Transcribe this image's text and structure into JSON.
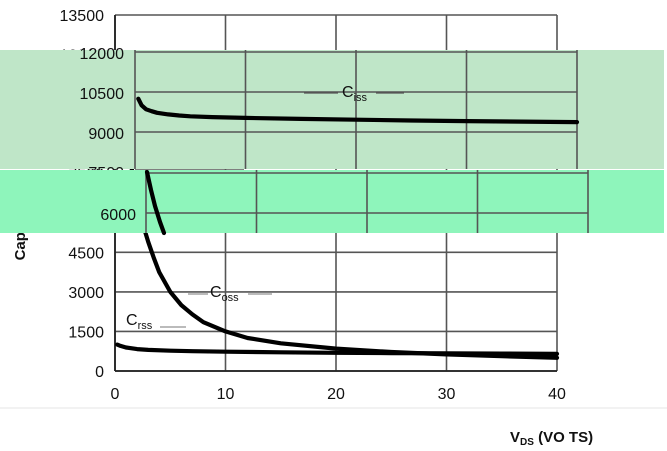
{
  "chart_data": {
    "type": "line",
    "ylabel": "Capacitance (pF)",
    "ylabel_visible": "Capa…acitanc…e (pF)",
    "xlabel_back": "V_DS (Volts)",
    "xlabel_front_main": "V",
    "xlabel_front_sub": "DS",
    "xlabel_front_rest": " (VO TS)",
    "xlim": [
      0,
      40
    ],
    "ylim": [
      0,
      13500
    ],
    "x_ticks": [
      "0",
      "10",
      "20",
      "30",
      "40"
    ],
    "y_ticks": [
      "0",
      "1500",
      "3000",
      "4500",
      "6000",
      "7500",
      "9000",
      "10500",
      "12000",
      "13500"
    ],
    "series": [
      {
        "name": "Ciss",
        "label_main": "C",
        "label_sub": "iss",
        "x": [
          0.3,
          0.6,
          1,
          1.5,
          2,
          3,
          4,
          5,
          7,
          10,
          15,
          20,
          25,
          30,
          35,
          40
        ],
        "y": [
          10250,
          10000,
          9850,
          9780,
          9720,
          9660,
          9620,
          9590,
          9560,
          9530,
          9490,
          9460,
          9430,
          9410,
          9390,
          9370
        ]
      },
      {
        "name": "Coss",
        "label_main": "C",
        "label_sub": "oss",
        "x": [
          1.2,
          1.5,
          2,
          2.5,
          3,
          3.5,
          4,
          5,
          6,
          7,
          8,
          10,
          12,
          15,
          20,
          25,
          30,
          35,
          40
        ],
        "y": [
          8500,
          7700,
          6500,
          5600,
          4900,
          4300,
          3750,
          3000,
          2500,
          2150,
          1850,
          1500,
          1250,
          1050,
          850,
          720,
          630,
          560,
          500
        ]
      },
      {
        "name": "Crss",
        "label_main": "C",
        "label_sub": "rss",
        "x": [
          0.2,
          0.5,
          1,
          2,
          3,
          5,
          7,
          10,
          15,
          20,
          25,
          30,
          35,
          40
        ],
        "y": [
          1000,
          950,
          890,
          830,
          800,
          770,
          750,
          730,
          710,
          690,
          680,
          670,
          660,
          650
        ]
      }
    ],
    "grid": true
  }
}
